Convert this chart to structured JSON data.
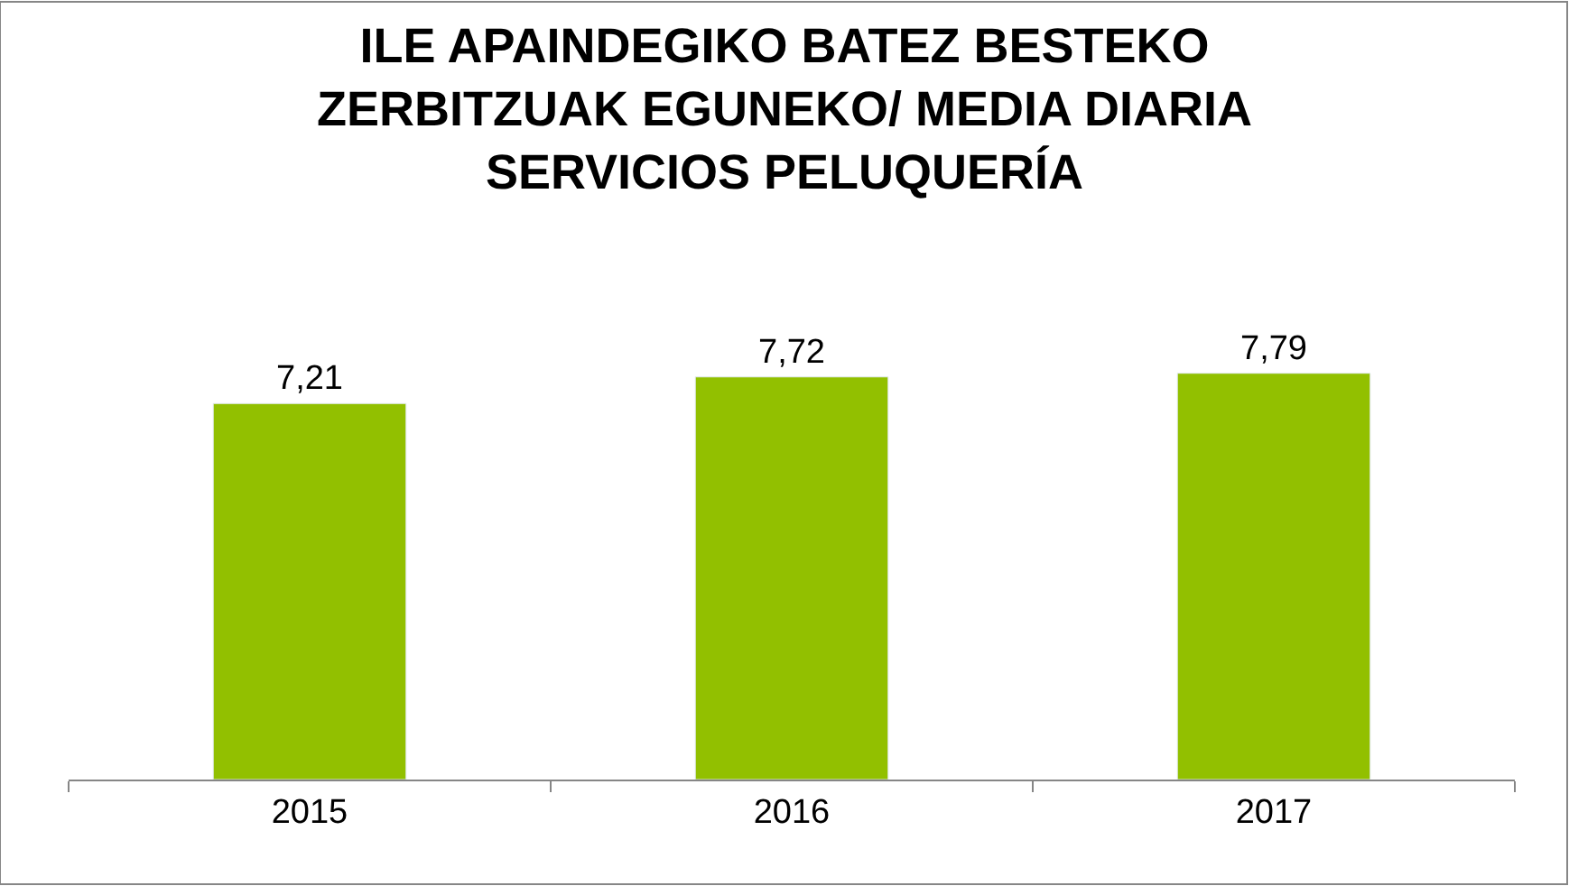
{
  "chart_data": {
    "type": "bar",
    "title": "ILE APAINDEGIKO BATEZ BESTEKO\nZERBITZUAK EGUNEKO/ MEDIA DIARIA\nSERVICIOS PELUQUERÍA",
    "categories": [
      "2015",
      "2016",
      "2017"
    ],
    "values": [
      7.21,
      7.72,
      7.79
    ],
    "value_labels": [
      "7,21",
      "7,72",
      "7,79"
    ],
    "color": "#92c000",
    "tick_labels": "x",
    "legend": false
  }
}
